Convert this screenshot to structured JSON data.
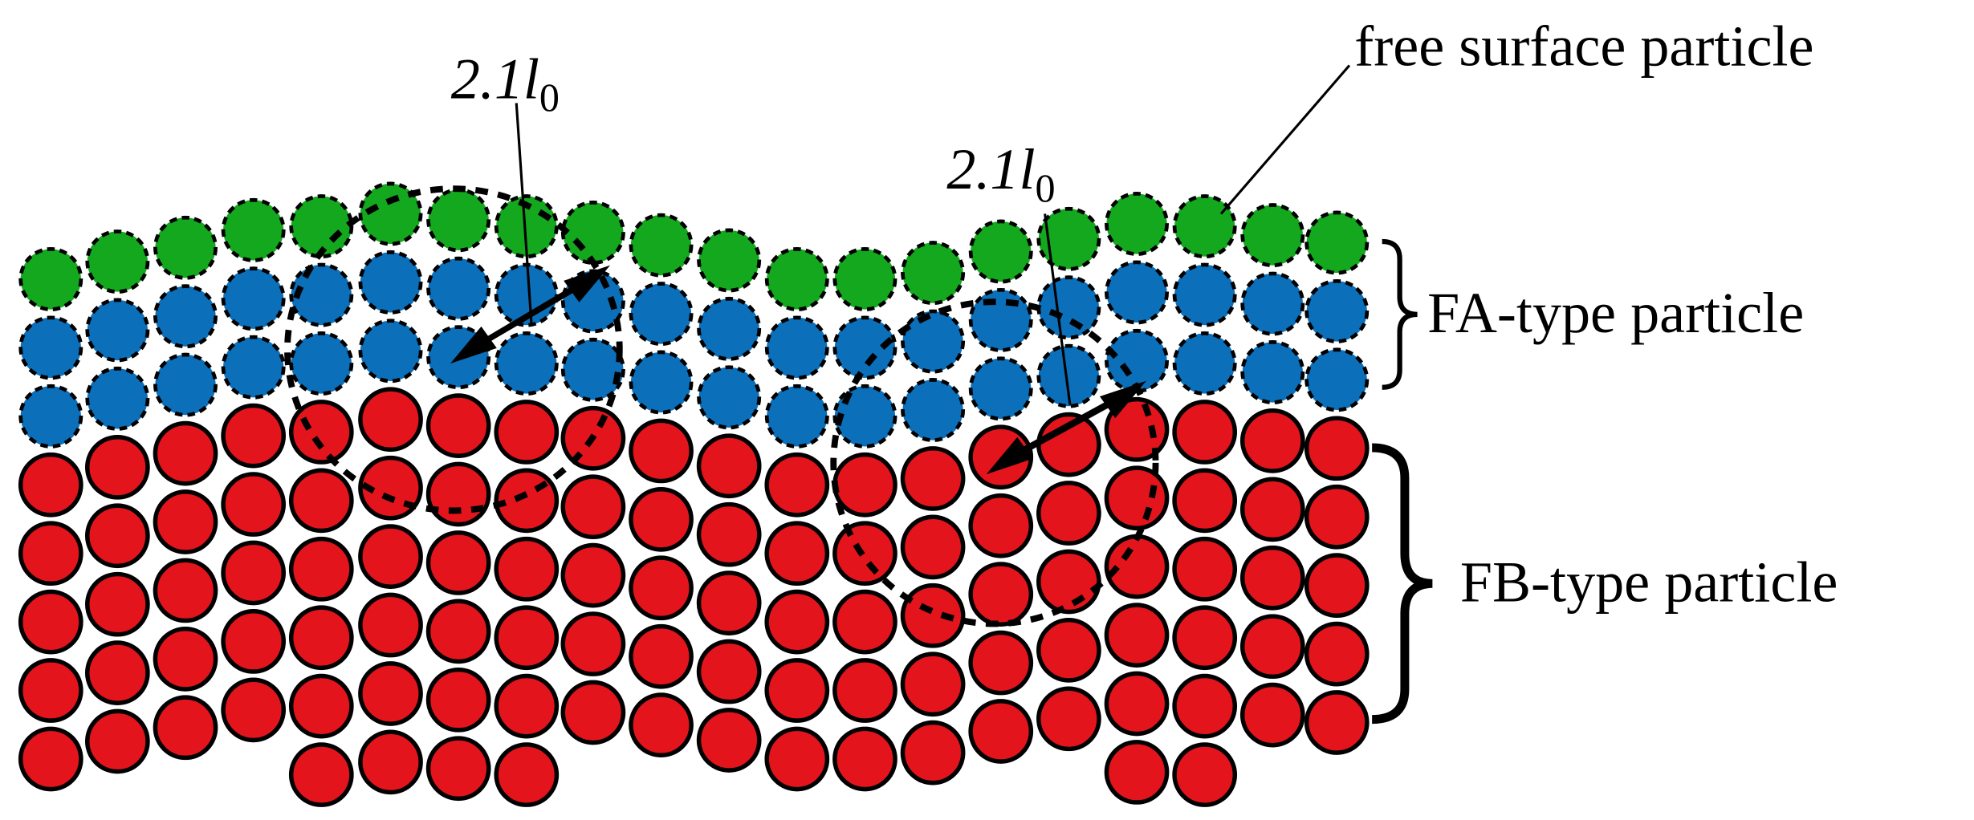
{
  "labels": {
    "free_surface": "free surface particle",
    "fa_type": "FA-type particle",
    "fb_type": "FB-type particle"
  },
  "radius_labels": [
    {
      "text": "2.1l",
      "subscript": "0"
    },
    {
      "text": "2.1l",
      "subscript": "0"
    }
  ]
}
